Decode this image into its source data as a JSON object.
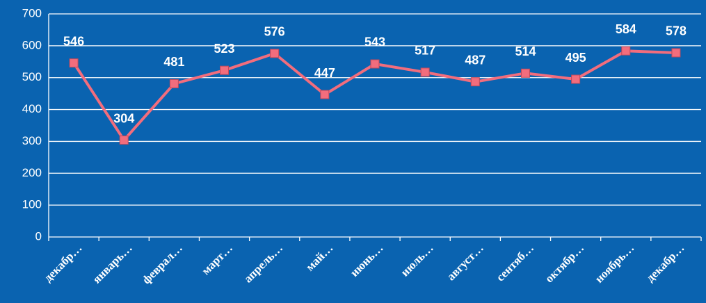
{
  "chart_data": {
    "type": "line",
    "categories": [
      "декабр…",
      "январь…",
      "феврал…",
      "март…",
      "апрель…",
      "май…",
      "июнь…",
      "июль…",
      "август…",
      "сентяб…",
      "октябр…",
      "ноябрь…",
      "декабр…"
    ],
    "series": [
      {
        "color": "#f26d7d",
        "values": [
          546,
          304,
          481,
          523,
          576,
          447,
          543,
          517,
          487,
          514,
          495,
          584,
          578
        ]
      }
    ],
    "ylim": [
      0,
      700
    ],
    "yticks": [
      0,
      100,
      200,
      300,
      400,
      500,
      600,
      700
    ],
    "grid": true
  }
}
